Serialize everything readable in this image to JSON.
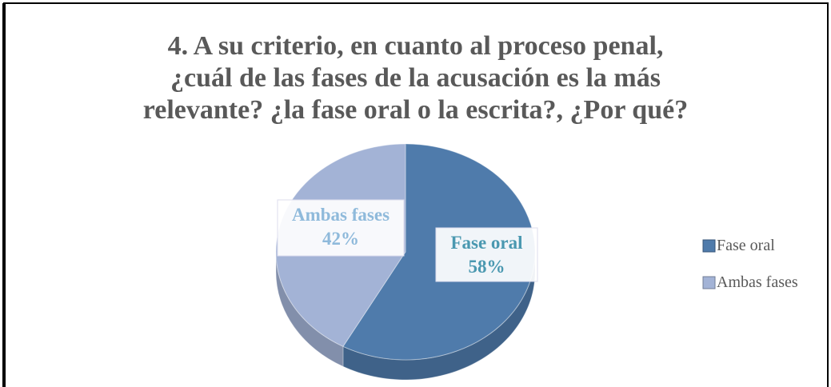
{
  "chart_data": {
    "type": "pie",
    "title": "4. A su criterio, en cuanto al proceso penal,\n¿cuál de las fases de la acusación es la más\nrelevante? ¿la fase oral o la escrita?, ¿Por qué?",
    "categories": [
      "Fase oral",
      "Ambas fases"
    ],
    "values": [
      58,
      42
    ],
    "value_labels": [
      "58%",
      "42%"
    ],
    "colors": [
      "#4f7bab",
      "#a3b3d6"
    ],
    "legend": "right"
  }
}
